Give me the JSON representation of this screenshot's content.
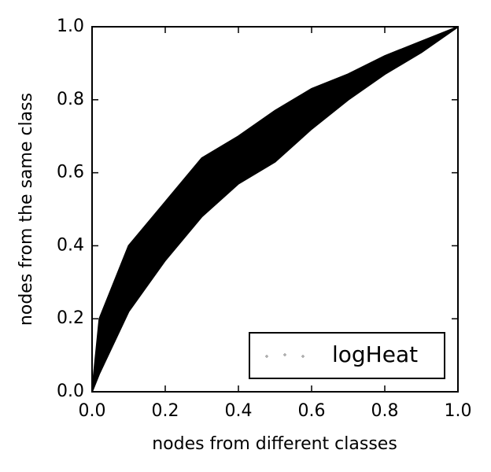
{
  "chart_data": {
    "type": "band",
    "xlabel": "nodes from different classes",
    "ylabel": "nodes from the same class",
    "x": [
      0,
      0.02,
      0.1,
      0.2,
      0.3,
      0.4,
      0.5,
      0.6,
      0.7,
      0.8,
      0.9,
      1.0
    ],
    "series": [
      {
        "name": "logHeat",
        "color": "#000000",
        "upper": [
          0,
          0.2,
          0.4,
          0.52,
          0.64,
          0.7,
          0.77,
          0.83,
          0.87,
          0.92,
          0.96,
          1.0
        ],
        "lower": [
          0,
          0.05,
          0.22,
          0.36,
          0.48,
          0.57,
          0.63,
          0.72,
          0.8,
          0.87,
          0.93,
          1.0
        ]
      }
    ],
    "xlim": [
      0,
      1
    ],
    "ylim": [
      0,
      1
    ],
    "xticks": [
      {
        "value": 0,
        "label": "0.0"
      },
      0.2,
      0.4,
      0.6,
      0.8,
      {
        "value": 1,
        "label": "1.0"
      }
    ],
    "yticks": [
      {
        "value": 0,
        "label": "0.0"
      },
      0.2,
      0.4,
      0.6,
      0.8,
      {
        "value": 1,
        "label": "1.0"
      }
    ],
    "legend": "lower right"
  }
}
